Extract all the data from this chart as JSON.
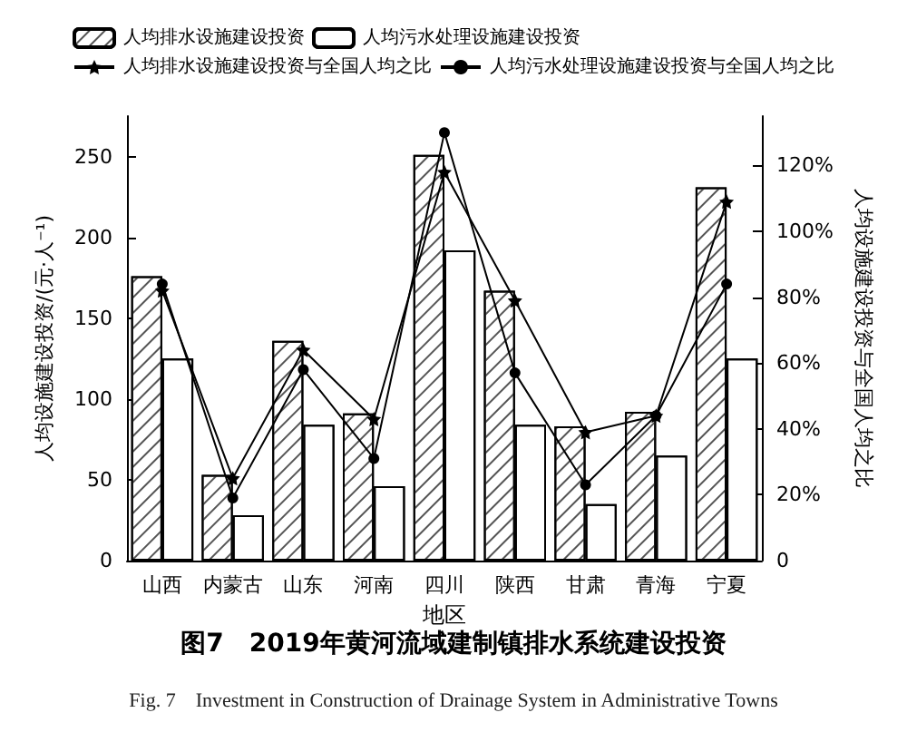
{
  "chart_data": {
    "type": "bar",
    "title": "图7　2019年黄河流域建制镇排水系统建设投资",
    "annotations": [
      "Fig. 7　Investment in Construction of Drainage System in Administrative Towns"
    ],
    "xlabel": "地区",
    "ylabel": "人均设施建设投资/(元·人⁻¹)",
    "y2label": "人均设施建设投资与全国人均之比",
    "categories": [
      "山西",
      "内蒙古",
      "山东",
      "河南",
      "四川",
      "陕西",
      "甘肃",
      "青海",
      "宁夏"
    ],
    "series": [
      {
        "name": "人均排水设施建设投资",
        "color": "#ffffff",
        "values": [
          176,
          53,
          136,
          91,
          251,
          167,
          83,
          92,
          231
        ]
      },
      {
        "name": "人均污水处理设施建设投资",
        "color": "#ffffff",
        "values": [
          125,
          28,
          84,
          46,
          192,
          84,
          35,
          65,
          125
        ]
      },
      {
        "name": "人均排水设施建设投资与全国人均之比",
        "type": "line",
        "axis": "y2",
        "marker": "star",
        "color": "#000000",
        "values": [
          82,
          25,
          64,
          43,
          118,
          79,
          39,
          44,
          109
        ]
      },
      {
        "name": "人均污水处理设施建设投资与全国人均之比",
        "type": "line",
        "axis": "y2",
        "marker": "circle",
        "color": "#000000",
        "values": [
          84,
          19,
          58,
          31,
          130,
          57,
          23,
          44,
          84
        ]
      }
    ],
    "ylim": [
      0,
      275
    ],
    "yticks": [
      0,
      50,
      100,
      150,
      200,
      250
    ],
    "y2lim": [
      0,
      135
    ],
    "y2ticks": [
      0,
      {
        "value": 20,
        "label": "20%"
      },
      {
        "value": 40,
        "label": "40%"
      },
      {
        "value": 60,
        "label": "60%"
      },
      {
        "value": 80,
        "label": "80%"
      },
      {
        "value": 100,
        "label": "100%"
      },
      {
        "value": 120,
        "label": "120%"
      }
    ],
    "legend": "top",
    "grid": false
  }
}
